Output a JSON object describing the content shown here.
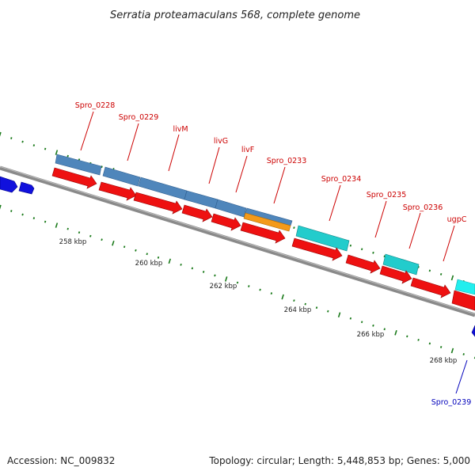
{
  "title": "Serratia proteamaculans 568, complete genome",
  "footer": {
    "accession": "Accession: NC_009832",
    "summary": "Topology: circular; Length: 5,448,853 bp; Genes: 5,000"
  },
  "colors": {
    "backbone": "#8a8a8a",
    "cds_forward": "#ee1111",
    "cds_reverse": "#1111dd",
    "blast_hit": "#4f86bb",
    "blast_hit_cyan": "#22cccc",
    "blast_hit_orange": "#f39a1a",
    "label_forward": "#cc0000",
    "label_reverse": "#0000bb",
    "tick_dot": "#1a7a1a"
  },
  "scale_labels": [
    "258 kbp",
    "260 kbp",
    "262 kbp",
    "264 kbp",
    "266 kbp",
    "268 kbp"
  ],
  "gene_labels": [
    {
      "name": "Spro_0228",
      "strand": "forward"
    },
    {
      "name": "Spro_0229",
      "strand": "forward"
    },
    {
      "name": "livM",
      "strand": "forward"
    },
    {
      "name": "livG",
      "strand": "forward"
    },
    {
      "name": "livF",
      "strand": "forward"
    },
    {
      "name": "Spro_0233",
      "strand": "forward"
    },
    {
      "name": "Spro_0234",
      "strand": "forward"
    },
    {
      "name": "Spro_0235",
      "strand": "forward"
    },
    {
      "name": "Spro_0236",
      "strand": "forward"
    },
    {
      "name": "ugpC",
      "strand": "forward"
    },
    {
      "name": "Spro_0239",
      "strand": "reverse"
    }
  ]
}
